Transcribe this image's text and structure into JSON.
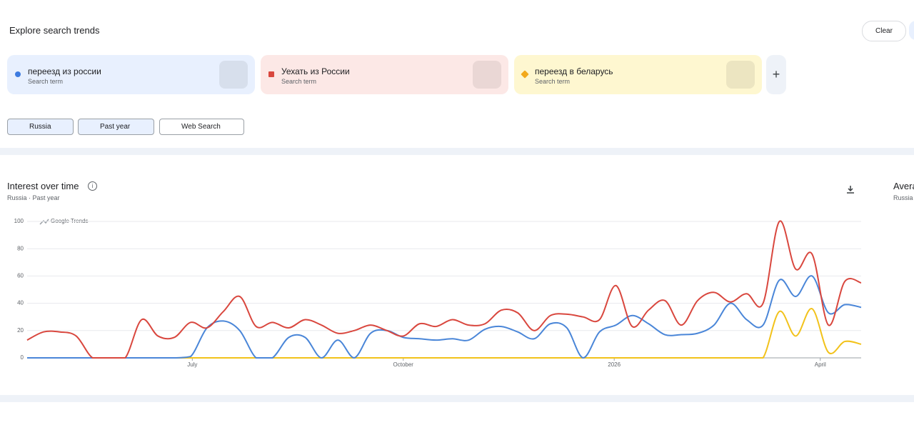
{
  "header": {
    "title": "Explore search trends",
    "clear": "Clear"
  },
  "terms": [
    {
      "label": "переезд из россии",
      "sublabel": "Search term",
      "color": "#3d7be0"
    },
    {
      "label": "Уехать из России",
      "sublabel": "Search term",
      "color": "#d9473e"
    },
    {
      "label": "переезд в беларусь",
      "sublabel": "Search term",
      "color": "#f2a91b"
    }
  ],
  "filters": [
    "Russia",
    "Past year",
    "Web Search"
  ],
  "panel": {
    "title": "Interest over time",
    "region": "Russia",
    "period": "Past year",
    "watermark": "Google Trends",
    "side_title": "Avera",
    "side_region": "Russia"
  },
  "chart_data": {
    "type": "line",
    "x": [
      0,
      1,
      2,
      3,
      4,
      5,
      6,
      7,
      8,
      9,
      10,
      11,
      12,
      13,
      14,
      15,
      16,
      17,
      18,
      19,
      20,
      21,
      22,
      23,
      24,
      25,
      26,
      27,
      28,
      29,
      30,
      31,
      32,
      33,
      34,
      35,
      36,
      37,
      38,
      39,
      40,
      41,
      42,
      43,
      44,
      45,
      46,
      47,
      48,
      49,
      50,
      51
    ],
    "xlim": [
      0,
      51
    ],
    "xticks": [
      {
        "value": 10.1,
        "label": "July"
      },
      {
        "value": 23,
        "label": "October"
      },
      {
        "value": 35.9,
        "label": "2026"
      },
      {
        "value": 48.5,
        "label": "April"
      }
    ],
    "ylim": [
      0,
      100
    ],
    "yticks": [
      0,
      20,
      40,
      60,
      80,
      100
    ],
    "grid": true,
    "series": [
      {
        "name": "переезд из россии",
        "color": "#4a86d8",
        "values": [
          0,
          0,
          0,
          0,
          0,
          0,
          0,
          0,
          0,
          0,
          1,
          22,
          27,
          20,
          0,
          0,
          15,
          15,
          0,
          13,
          0,
          18,
          20,
          15,
          14,
          13,
          14,
          13,
          21,
          23,
          19,
          14,
          25,
          22,
          0,
          19,
          24,
          31,
          25,
          17,
          17,
          18,
          24,
          40,
          28,
          24,
          57,
          45,
          60,
          33,
          39,
          37
        ]
      },
      {
        "name": "Уехать из России",
        "color": "#d9473e",
        "values": [
          13,
          19,
          19,
          16,
          0,
          0,
          0,
          28,
          16,
          15,
          26,
          22,
          34,
          45,
          23,
          26,
          22,
          28,
          24,
          18,
          20,
          24,
          20,
          16,
          25,
          23,
          28,
          24,
          25,
          35,
          33,
          20,
          31,
          32,
          30,
          28,
          53,
          23,
          35,
          42,
          24,
          42,
          48,
          41,
          47,
          40,
          100,
          65,
          76,
          24,
          56,
          55
        ]
      },
      {
        "name": "переезд в беларусь",
        "color": "#f2c21b",
        "values": [
          0,
          0,
          0,
          0,
          0,
          0,
          0,
          0,
          0,
          0,
          0,
          0,
          0,
          0,
          0,
          0,
          0,
          0,
          0,
          0,
          0,
          0,
          0,
          0,
          0,
          0,
          0,
          0,
          0,
          0,
          0,
          0,
          0,
          0,
          0,
          0,
          0,
          0,
          0,
          0,
          0,
          0,
          0,
          0,
          0,
          0,
          34,
          16,
          36,
          4,
          12,
          10
        ]
      }
    ]
  }
}
